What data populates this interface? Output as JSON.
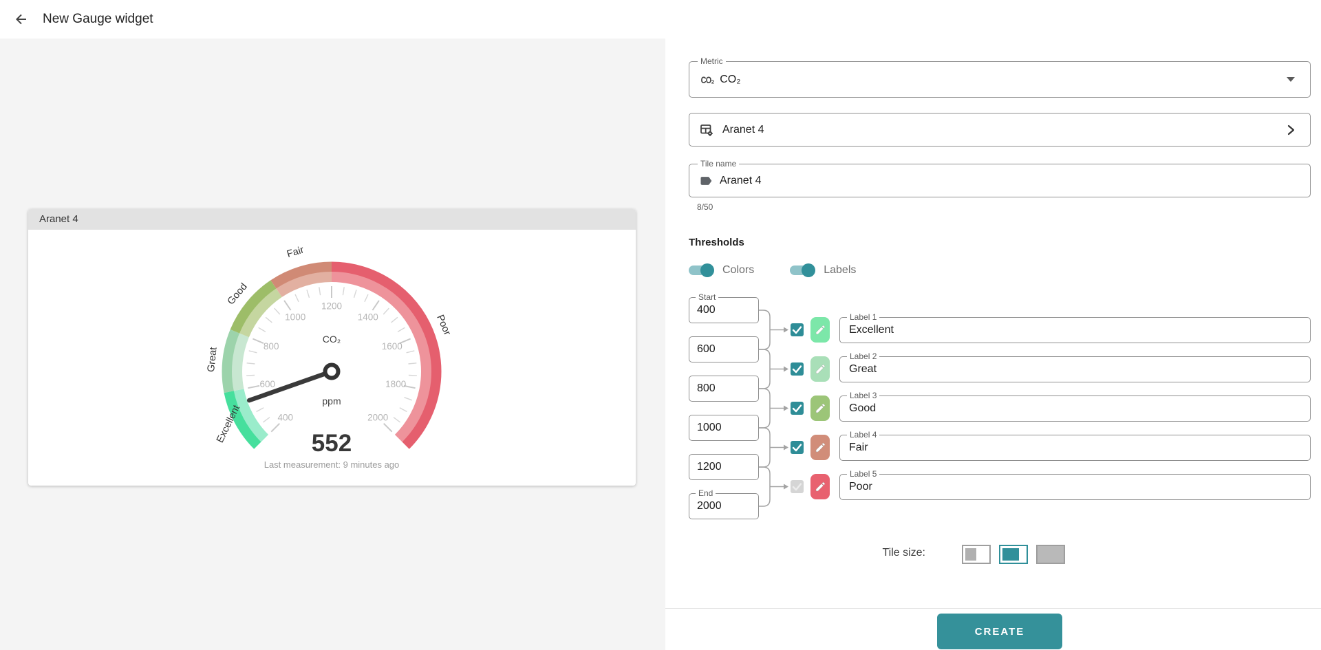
{
  "header": {
    "title": "New Gauge widget"
  },
  "chart_data": {
    "type": "gauge",
    "title": "Aranet 4",
    "metric": "CO₂",
    "unit": "ppm",
    "value": 552,
    "min": 400,
    "max": 2000,
    "start_angle": -135,
    "end_angle": 135,
    "major_tick_step": 200,
    "minor_tick_step": 50,
    "tick_labels": [
      400,
      600,
      800,
      1000,
      1200,
      1400,
      1600,
      1800,
      2000
    ],
    "segments": [
      {
        "label": "Excellent",
        "from": 400,
        "to": 600,
        "color": "#46df9d",
        "inner_color": "#9aeccb"
      },
      {
        "label": "Great",
        "from": 600,
        "to": 800,
        "color": "#9cd3ab",
        "inner_color": "#c8e7d1"
      },
      {
        "label": "Good",
        "from": 800,
        "to": 1000,
        "color": "#9dbd68",
        "inner_color": "#c5d6a0"
      },
      {
        "label": "Fair",
        "from": 1000,
        "to": 1200,
        "color": "#d08a75",
        "inner_color": "#e2b0a1"
      },
      {
        "label": "Poor",
        "from": 1200,
        "to": 2000,
        "color": "#e55f6e",
        "inner_color": "#ee939b"
      }
    ],
    "needle_color": "#3a3a3a",
    "value_color": "#383838",
    "tick_color": "#cfcfcf",
    "tick_label_color": "#b5b5b5",
    "footnote": "Last measurement: 9 minutes ago"
  },
  "form": {
    "metric": {
      "legend": "Metric",
      "icon_text": "CO₂",
      "value": "CO₂"
    },
    "device": {
      "label": "Aranet 4"
    },
    "tile_name": {
      "legend": "Tile name",
      "value": "Aranet 4",
      "counter": "8/50"
    },
    "thresholds": {
      "heading": "Thresholds",
      "toggles": [
        {
          "label": "Colors",
          "on": true
        },
        {
          "label": "Labels",
          "on": true
        }
      ],
      "values": [
        {
          "legend": "Start",
          "value": "400"
        },
        {
          "legend": "",
          "value": "600"
        },
        {
          "legend": "",
          "value": "800"
        },
        {
          "legend": "",
          "value": "1000"
        },
        {
          "legend": "",
          "value": "1200"
        },
        {
          "legend": "End",
          "value": "2000"
        }
      ],
      "ranges": [
        {
          "checked": true,
          "disabled": false,
          "color": "#7ce7a9",
          "label_legend": "Label 1",
          "label": "Excellent"
        },
        {
          "checked": true,
          "disabled": false,
          "color": "#a9dfb8",
          "label_legend": "Label 2",
          "label": "Great"
        },
        {
          "checked": true,
          "disabled": false,
          "color": "#9cc578",
          "label_legend": "Label 3",
          "label": "Good"
        },
        {
          "checked": true,
          "disabled": false,
          "color": "#d18d79",
          "label_legend": "Label 4",
          "label": "Fair"
        },
        {
          "checked": true,
          "disabled": true,
          "color": "#e8616f",
          "label_legend": "Label 5",
          "label": "Poor"
        }
      ]
    },
    "tile_size": {
      "label": "Tile size:",
      "options": [
        "small",
        "medium",
        "large"
      ],
      "selected": "medium"
    },
    "create_label": "CREATE"
  },
  "colors": {
    "accent": "#31909a",
    "checkbox": "#2e8d97",
    "disabled_checkbox": "#d5d5d5",
    "left_bg": "#f4f4f4",
    "tile_header_bg": "#e2e2e2"
  }
}
